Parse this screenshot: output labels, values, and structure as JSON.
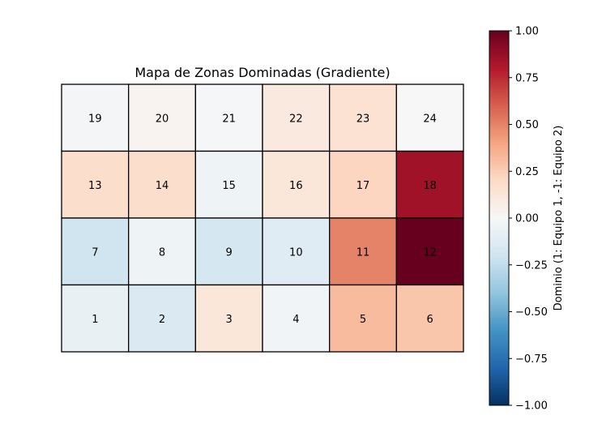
{
  "chart_data": {
    "type": "heatmap",
    "title": "Mapa de Zonas Dominadas (Gradiente)",
    "grid_cols": 6,
    "grid_rows": 4,
    "zones": [
      {
        "label": "19",
        "row": 0,
        "col": 0,
        "value": -0.02
      },
      {
        "label": "20",
        "row": 0,
        "col": 1,
        "value": 0.03
      },
      {
        "label": "21",
        "row": 0,
        "col": 2,
        "value": -0.01
      },
      {
        "label": "22",
        "row": 0,
        "col": 3,
        "value": 0.1
      },
      {
        "label": "23",
        "row": 0,
        "col": 4,
        "value": 0.15
      },
      {
        "label": "24",
        "row": 0,
        "col": 5,
        "value": 0.0
      },
      {
        "label": "13",
        "row": 1,
        "col": 0,
        "value": 0.18
      },
      {
        "label": "14",
        "row": 1,
        "col": 1,
        "value": 0.18
      },
      {
        "label": "15",
        "row": 1,
        "col": 2,
        "value": -0.05
      },
      {
        "label": "16",
        "row": 1,
        "col": 3,
        "value": 0.12
      },
      {
        "label": "17",
        "row": 1,
        "col": 4,
        "value": 0.22
      },
      {
        "label": "18",
        "row": 1,
        "col": 5,
        "value": 0.85
      },
      {
        "label": "7",
        "row": 2,
        "col": 0,
        "value": -0.2
      },
      {
        "label": "8",
        "row": 2,
        "col": 1,
        "value": -0.05
      },
      {
        "label": "9",
        "row": 2,
        "col": 2,
        "value": -0.18
      },
      {
        "label": "10",
        "row": 2,
        "col": 3,
        "value": -0.12
      },
      {
        "label": "11",
        "row": 2,
        "col": 4,
        "value": 0.5
      },
      {
        "label": "12",
        "row": 2,
        "col": 5,
        "value": 1.0
      },
      {
        "label": "1",
        "row": 3,
        "col": 0,
        "value": -0.08
      },
      {
        "label": "2",
        "row": 3,
        "col": 1,
        "value": -0.15
      },
      {
        "label": "3",
        "row": 3,
        "col": 2,
        "value": 0.12
      },
      {
        "label": "4",
        "row": 3,
        "col": 3,
        "value": -0.03
      },
      {
        "label": "5",
        "row": 3,
        "col": 4,
        "value": 0.32
      },
      {
        "label": "6",
        "row": 3,
        "col": 5,
        "value": 0.28
      }
    ],
    "colorbar": {
      "label": "Dominio (1: Equipo 1, -1: Equipo 2)",
      "vmin": -1.0,
      "vmax": 1.0,
      "colormap": "RdBu_r",
      "ticks": [
        {
          "value": 1.0,
          "label": "1.00"
        },
        {
          "value": 0.75,
          "label": "0.75"
        },
        {
          "value": 0.5,
          "label": "0.50"
        },
        {
          "value": 0.25,
          "label": "0.25"
        },
        {
          "value": 0.0,
          "label": "0.00"
        },
        {
          "value": -0.25,
          "label": "−0.25"
        },
        {
          "value": -0.5,
          "label": "−0.50"
        },
        {
          "value": -0.75,
          "label": "−0.75"
        },
        {
          "value": -1.0,
          "label": "−1.00"
        }
      ]
    },
    "colormap_stops": [
      {
        "v": -1.0,
        "color": "#053061"
      },
      {
        "v": -0.8,
        "color": "#2166ac"
      },
      {
        "v": -0.6,
        "color": "#4393c3"
      },
      {
        "v": -0.4,
        "color": "#92c5de"
      },
      {
        "v": -0.2,
        "color": "#d1e5f0"
      },
      {
        "v": 0.0,
        "color": "#f7f7f7"
      },
      {
        "v": 0.2,
        "color": "#fddbc7"
      },
      {
        "v": 0.4,
        "color": "#f4a582"
      },
      {
        "v": 0.6,
        "color": "#d6604d"
      },
      {
        "v": 0.8,
        "color": "#b2182b"
      },
      {
        "v": 1.0,
        "color": "#67001f"
      }
    ]
  }
}
